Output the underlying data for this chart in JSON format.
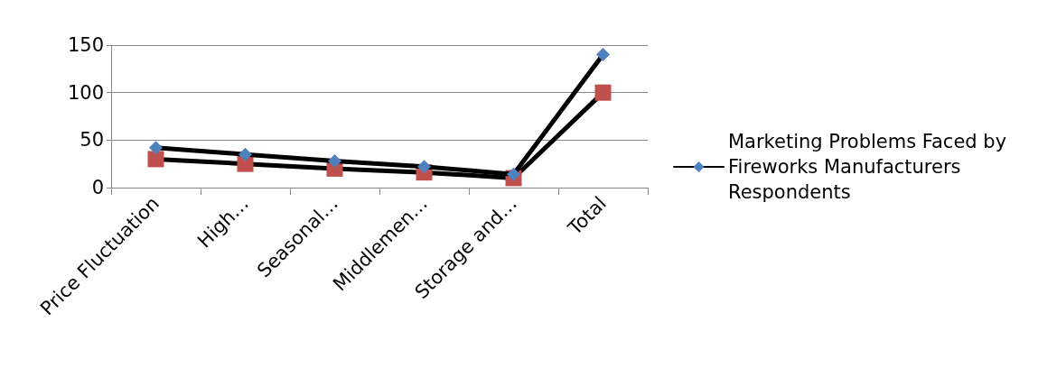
{
  "chart_data": {
    "type": "line",
    "categories": [
      "Price Fluctuation",
      "High…",
      "Seasonal…",
      "Middlemen…",
      "Storage and…",
      "Total"
    ],
    "series": [
      {
        "name": "Marketing Problems Faced by Fireworks Manufacturers Respondents",
        "color": "#4f81bd",
        "marker": "diamond",
        "values": [
          42,
          35,
          28,
          22,
          14,
          140
        ]
      },
      {
        "color": "#c0504d",
        "marker": "square",
        "values": [
          30,
          25,
          20,
          16,
          10,
          100
        ]
      }
    ],
    "ylim": [
      0,
      150
    ],
    "yticks": [
      0,
      50,
      100,
      150
    ],
    "grid": "y",
    "legend": "right"
  }
}
